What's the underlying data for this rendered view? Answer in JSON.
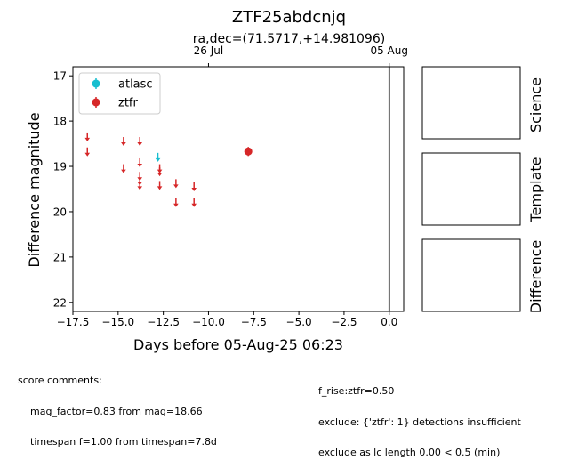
{
  "chart_data": {
    "type": "scatter",
    "title": "ZTF25abdcnjq",
    "subtitle": "ra,dec=(71.5717,+14.981096)",
    "xlabel": "Days before 05-Aug-25 06:23",
    "ylabel": "Difference magnitude",
    "xlim": [
      -17.5,
      0.8
    ],
    "ylim": [
      22.2,
      16.8
    ],
    "y_inverted": true,
    "x_ticks": [
      "−17.5",
      "−15.0",
      "−12.5",
      "−10.0",
      "−7.5",
      "−5.0",
      "−2.5",
      "0.0"
    ],
    "x_tick_values": [
      -17.5,
      -15.0,
      -12.5,
      -10.0,
      -7.5,
      -5.0,
      -2.5,
      0.0
    ],
    "y_ticks": [
      "17",
      "18",
      "19",
      "20",
      "21",
      "22"
    ],
    "y_tick_values": [
      17,
      18,
      19,
      20,
      21,
      22
    ],
    "top_axis_ticks": [
      {
        "label": "26 Jul",
        "value": -10.0
      },
      {
        "label": "05 Aug",
        "value": 0.0
      }
    ],
    "vline_x": 0.0,
    "legend_position": "upper-left",
    "series": [
      {
        "name": "atlasc",
        "color": "#17becf",
        "detections": [],
        "upper_limits": [
          {
            "x": -12.8,
            "y": 18.8
          }
        ]
      },
      {
        "name": "ztfr",
        "color": "#d62728",
        "detections": [
          {
            "x": -7.8,
            "y": 18.67,
            "err": 0.1
          }
        ],
        "upper_limits": [
          {
            "x": -16.7,
            "y": 18.35
          },
          {
            "x": -16.7,
            "y": 18.68
          },
          {
            "x": -14.7,
            "y": 18.45
          },
          {
            "x": -14.7,
            "y": 19.05
          },
          {
            "x": -13.8,
            "y": 18.45
          },
          {
            "x": -13.8,
            "y": 18.92
          },
          {
            "x": -13.8,
            "y": 19.22
          },
          {
            "x": -13.8,
            "y": 19.32
          },
          {
            "x": -13.8,
            "y": 19.42
          },
          {
            "x": -12.7,
            "y": 19.05
          },
          {
            "x": -12.7,
            "y": 19.12
          },
          {
            "x": -12.7,
            "y": 19.42
          },
          {
            "x": -11.8,
            "y": 19.38
          },
          {
            "x": -11.8,
            "y": 19.8
          },
          {
            "x": -10.8,
            "y": 19.45
          },
          {
            "x": -10.8,
            "y": 19.8
          }
        ]
      }
    ]
  },
  "panels": {
    "science_label": "Science",
    "template_label": "Template",
    "difference_label": "Difference"
  },
  "score_comments": {
    "header": "score comments:",
    "left": [
      "mag_factor=0.83 from mag=18.66",
      "timespan f=1.00 from timespan=7.8d"
    ],
    "right": [
      "f_rise:ztfr=0.50",
      "exclude: {'ztfr': 1} detections insufficient",
      "exclude as lc length 0.00 < 0.5 (min)"
    ]
  }
}
